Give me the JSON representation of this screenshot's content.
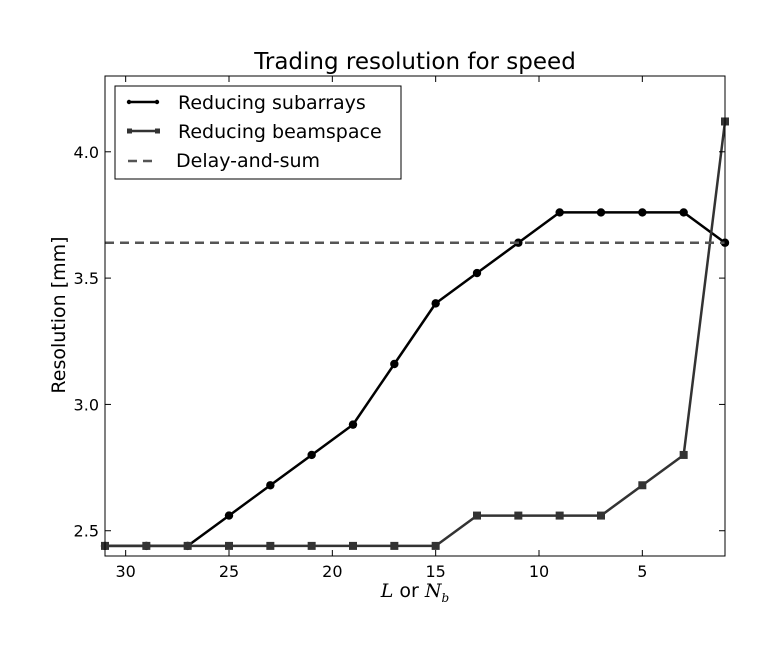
{
  "chart_data": {
    "type": "line",
    "title": "Trading resolution for speed",
    "xlabel": {
      "var1": "L",
      "connector": " or ",
      "var2": "N",
      "var2_sub": "b"
    },
    "ylabel": "Resolution [mm]",
    "x_reversed": true,
    "xlim": [
      31,
      1
    ],
    "ylim": [
      2.4,
      4.3
    ],
    "xticks": [
      30,
      25,
      20,
      15,
      10,
      5
    ],
    "yticks": [
      2.5,
      3.0,
      3.5,
      4.0
    ],
    "xtick_labels": [
      "30",
      "25",
      "20",
      "15",
      "10",
      "5"
    ],
    "ytick_labels": [
      "2.5",
      "3.0",
      "3.5",
      "4.0"
    ],
    "grid": false,
    "legend_position": "upper-left",
    "series": [
      {
        "name": "Reducing subarrays",
        "marker": "circle",
        "color": "#000000",
        "x": [
          31,
          29,
          27,
          25,
          23,
          21,
          19,
          17,
          15,
          13,
          11,
          9,
          7,
          5,
          3,
          1
        ],
        "y": [
          2.44,
          2.44,
          2.44,
          2.56,
          2.68,
          2.8,
          2.92,
          3.16,
          3.4,
          3.52,
          3.64,
          3.76,
          3.76,
          3.76,
          3.76,
          3.64
        ]
      },
      {
        "name": "Reducing beamspace",
        "marker": "square",
        "color": "#333333",
        "x": [
          31,
          29,
          27,
          25,
          23,
          21,
          19,
          17,
          15,
          13,
          11,
          9,
          7,
          5,
          3,
          1
        ],
        "y": [
          2.44,
          2.44,
          2.44,
          2.44,
          2.44,
          2.44,
          2.44,
          2.44,
          2.44,
          2.56,
          2.56,
          2.56,
          2.56,
          2.68,
          2.8,
          4.12
        ]
      },
      {
        "name": "Delay-and-sum",
        "marker": "none",
        "style": "dashed",
        "color": "#555555",
        "y_constant": 3.64
      }
    ]
  }
}
